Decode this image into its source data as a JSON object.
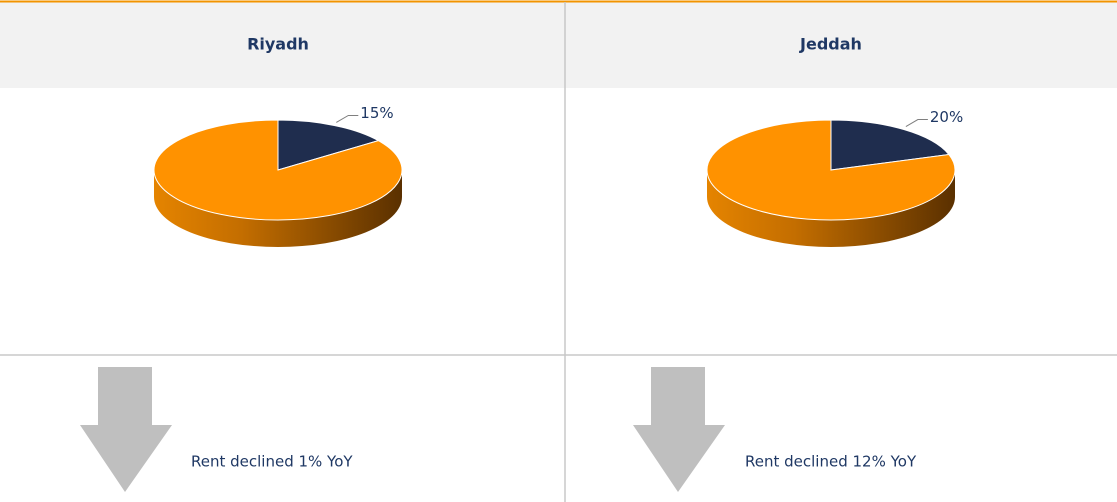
{
  "table": {
    "headers": [
      "Riyadh",
      "Jeddah"
    ],
    "notes": [
      "Rent declined 1% YoY",
      "Rent declined 12% YoY"
    ]
  },
  "chart_data": [
    {
      "type": "pie",
      "values": [
        15,
        85
      ],
      "value_labels": [
        "15%",
        null
      ],
      "colors": [
        "#1f2d4e",
        "#ff9200"
      ]
    },
    {
      "type": "pie",
      "values": [
        20,
        80
      ],
      "value_labels": [
        "20%",
        null
      ],
      "colors": [
        "#1f2d4e",
        "#ff9200"
      ]
    }
  ]
}
